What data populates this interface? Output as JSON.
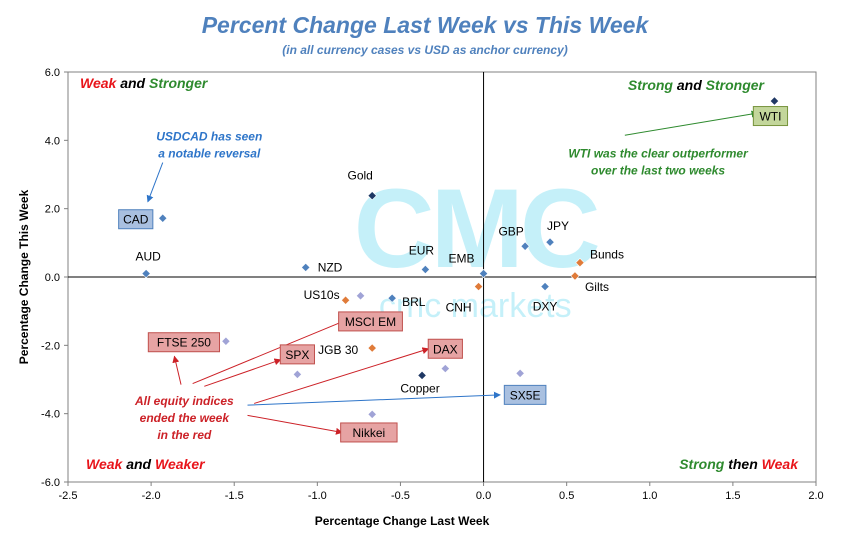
{
  "chart_data": {
    "type": "scatter",
    "title": "Percent Change Last Week vs This Week",
    "subtitle": "(in all  currency cases vs  USD as anchor currency)",
    "xlabel": "Percentage Change Last Week",
    "ylabel": "Percentage Change This Week",
    "xlim": [
      -2.5,
      2.0
    ],
    "ylim": [
      -6.0,
      6.0
    ],
    "xticks": [
      "-2.5",
      "-2.0",
      "-1.5",
      "-1.0",
      "-0.5",
      "0.0",
      "0.5",
      "1.0",
      "1.5",
      "2.0"
    ],
    "yticks": [
      "6.0",
      "4.0",
      "2.0",
      "0.0",
      "-2.0",
      "-4.0",
      "-6.0"
    ],
    "grid": false,
    "quadrants": {
      "top_left": [
        {
          "text": "Weak",
          "color": "#e8151b"
        },
        {
          "text": " and ",
          "color": "#000000"
        },
        {
          "text": "Stronger",
          "color": "#2e8a2e"
        }
      ],
      "top_right": [
        {
          "text": "Strong",
          "color": "#2e8a2e"
        },
        {
          "text": " and ",
          "color": "#000000"
        },
        {
          "text": "Stronger",
          "color": "#2e8a2e"
        }
      ],
      "bottom_left": [
        {
          "text": "Weak",
          "color": "#e8151b"
        },
        {
          "text": " and ",
          "color": "#000000"
        },
        {
          "text": "Weaker",
          "color": "#e8151b"
        }
      ],
      "bottom_right": [
        {
          "text": "Strong",
          "color": "#2e8a2e"
        },
        {
          "text": " then ",
          "color": "#000000"
        },
        {
          "text": "Weak",
          "color": "#e8151b"
        }
      ]
    },
    "watermark": {
      "logo": "CMC",
      "text": "cmc markets",
      "color": "#7fe0f2"
    },
    "points": [
      {
        "label": "CAD",
        "x": -1.93,
        "y": 1.72,
        "color": "#4f81bd",
        "label_style": "box-blue"
      },
      {
        "label": "AUD",
        "x": -2.03,
        "y": 0.1,
        "color": "#4f81bd",
        "label_style": "plain"
      },
      {
        "label": "Gold",
        "x": -0.67,
        "y": 2.38,
        "color": "#1f3864",
        "label_style": "plain"
      },
      {
        "label": "NZD",
        "x": -1.07,
        "y": 0.28,
        "color": "#4f81bd",
        "label_style": "plain"
      },
      {
        "label": "EUR",
        "x": -0.35,
        "y": 0.22,
        "color": "#4f81bd",
        "label_style": "plain"
      },
      {
        "label": "EMB",
        "x": 0.0,
        "y": 0.1,
        "color": "#4f81bd",
        "label_style": "plain"
      },
      {
        "label": "GBP",
        "x": 0.25,
        "y": 0.9,
        "color": "#4f81bd",
        "label_style": "plain"
      },
      {
        "label": "JPY",
        "x": 0.4,
        "y": 1.02,
        "color": "#4f81bd",
        "label_style": "plain"
      },
      {
        "label": "Bunds",
        "x": 0.58,
        "y": 0.42,
        "color": "#e07b39",
        "label_style": "plain"
      },
      {
        "label": "Gilts",
        "x": 0.55,
        "y": 0.03,
        "color": "#e07b39",
        "label_style": "plain"
      },
      {
        "label": "DXY",
        "x": 0.37,
        "y": -0.28,
        "color": "#4f81bd",
        "label_style": "plain"
      },
      {
        "label": "CNH",
        "x": -0.03,
        "y": -0.28,
        "color": "#e07b39",
        "label_style": "plain"
      },
      {
        "label": "BRL",
        "x": -0.55,
        "y": -0.62,
        "color": "#4f81bd",
        "label_style": "plain"
      },
      {
        "label": "US10s",
        "x": -0.83,
        "y": -0.68,
        "color": "#e07b39",
        "label_style": "plain"
      },
      {
        "label": "",
        "x": -0.74,
        "y": -0.55,
        "color": "#a0a3d6",
        "label_style": "none"
      },
      {
        "label": "JGB 30",
        "x": -0.67,
        "y": -2.08,
        "color": "#e07b39",
        "label_style": "plain"
      },
      {
        "label": "FTSE 250",
        "x": -1.55,
        "y": -1.88,
        "color": "#a0a3d6",
        "label_style": "box-red"
      },
      {
        "label": "SPX",
        "x": -1.12,
        "y": -2.85,
        "color": "#a0a3d6",
        "label_style": "box-red"
      },
      {
        "label": "Copper",
        "x": -0.37,
        "y": -2.88,
        "color": "#1f3864",
        "label_style": "plain"
      },
      {
        "label": "",
        "x": -0.23,
        "y": -2.68,
        "color": "#a0a3d6",
        "label_style": "none"
      },
      {
        "label": "",
        "x": 0.22,
        "y": -2.82,
        "color": "#a0a3d6",
        "label_style": "none"
      },
      {
        "label": "",
        "x": -0.67,
        "y": -4.02,
        "color": "#a0a3d6",
        "label_style": "none"
      },
      {
        "label": "WTI",
        "x": 1.75,
        "y": 5.15,
        "color": "#1f3864",
        "label_style": "box-green"
      }
    ],
    "floating_labels": [
      {
        "text": "MSCI EM",
        "style": "box-red",
        "x": -0.68,
        "y": -1.3
      },
      {
        "text": "DAX",
        "style": "box-red",
        "x": -0.23,
        "y": -2.1
      },
      {
        "text": "SX5E",
        "style": "box-blue",
        "x": 0.25,
        "y": -3.45
      },
      {
        "text": "Nikkei",
        "style": "box-red",
        "x": -0.69,
        "y": -4.55
      }
    ],
    "annotations": [
      {
        "lines": [
          "USDCAD has seen",
          "a notable reversal"
        ],
        "color": "#2e75c9",
        "x": -1.65,
        "y": 4.0
      },
      {
        "lines": [
          "WTI was the clear outperformer",
          "over the last two weeks"
        ],
        "color": "#2e8a2e",
        "x": 1.05,
        "y": 3.5
      },
      {
        "lines": [
          "All equity indices",
          "ended the week",
          "in the red"
        ],
        "color": "#cc2127",
        "x": -1.8,
        "y": -3.75
      }
    ]
  }
}
